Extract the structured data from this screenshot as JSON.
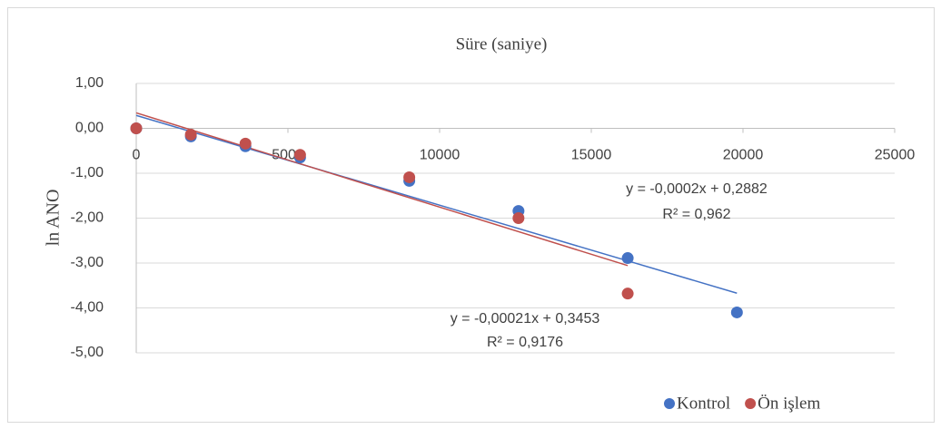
{
  "chart_data": {
    "type": "scatter",
    "title": "Süre (saniye)",
    "y_label": "ln ANO",
    "xlim": [
      0,
      25000
    ],
    "xticks": [
      0,
      5000,
      10000,
      15000,
      20000,
      25000
    ],
    "ylim": [
      -5,
      1
    ],
    "yticks": [
      {
        "value": 1,
        "label": "1,00"
      },
      {
        "value": 0,
        "label": "0,00"
      },
      {
        "value": -1,
        "label": "-1,00"
      },
      {
        "value": -2,
        "label": "-2,00"
      },
      {
        "value": -3,
        "label": "-3,00"
      },
      {
        "value": -4,
        "label": "-4,00"
      },
      {
        "value": -5,
        "label": "-5,00"
      }
    ],
    "grid": true,
    "legend": "bottom",
    "series": [
      {
        "name": "Kontrol",
        "color": "#4472c4",
        "x": [
          0,
          1800,
          3600,
          5400,
          9000,
          12600,
          16200,
          19800
        ],
        "values": [
          0,
          -0.18,
          -0.4,
          -0.65,
          -1.17,
          -1.84,
          -2.89,
          -4.1
        ],
        "trendline": {
          "slope": -0.0002,
          "intercept": 0.2882,
          "equation": "y = -0,0002x + 0,2882",
          "r2_label": "R² = 0,962"
        }
      },
      {
        "name": "Ön işlem",
        "color": "#c0504d",
        "x": [
          0,
          1800,
          3600,
          5400,
          9000,
          12600,
          16200
        ],
        "values": [
          0,
          -0.14,
          -0.34,
          -0.59,
          -1.09,
          -2.0,
          -3.68
        ],
        "trendline": {
          "slope": -0.00021,
          "intercept": 0.3453,
          "equation": "y = -0,00021x + 0,3453",
          "r2_label": "R² = 0,9176"
        }
      }
    ]
  }
}
